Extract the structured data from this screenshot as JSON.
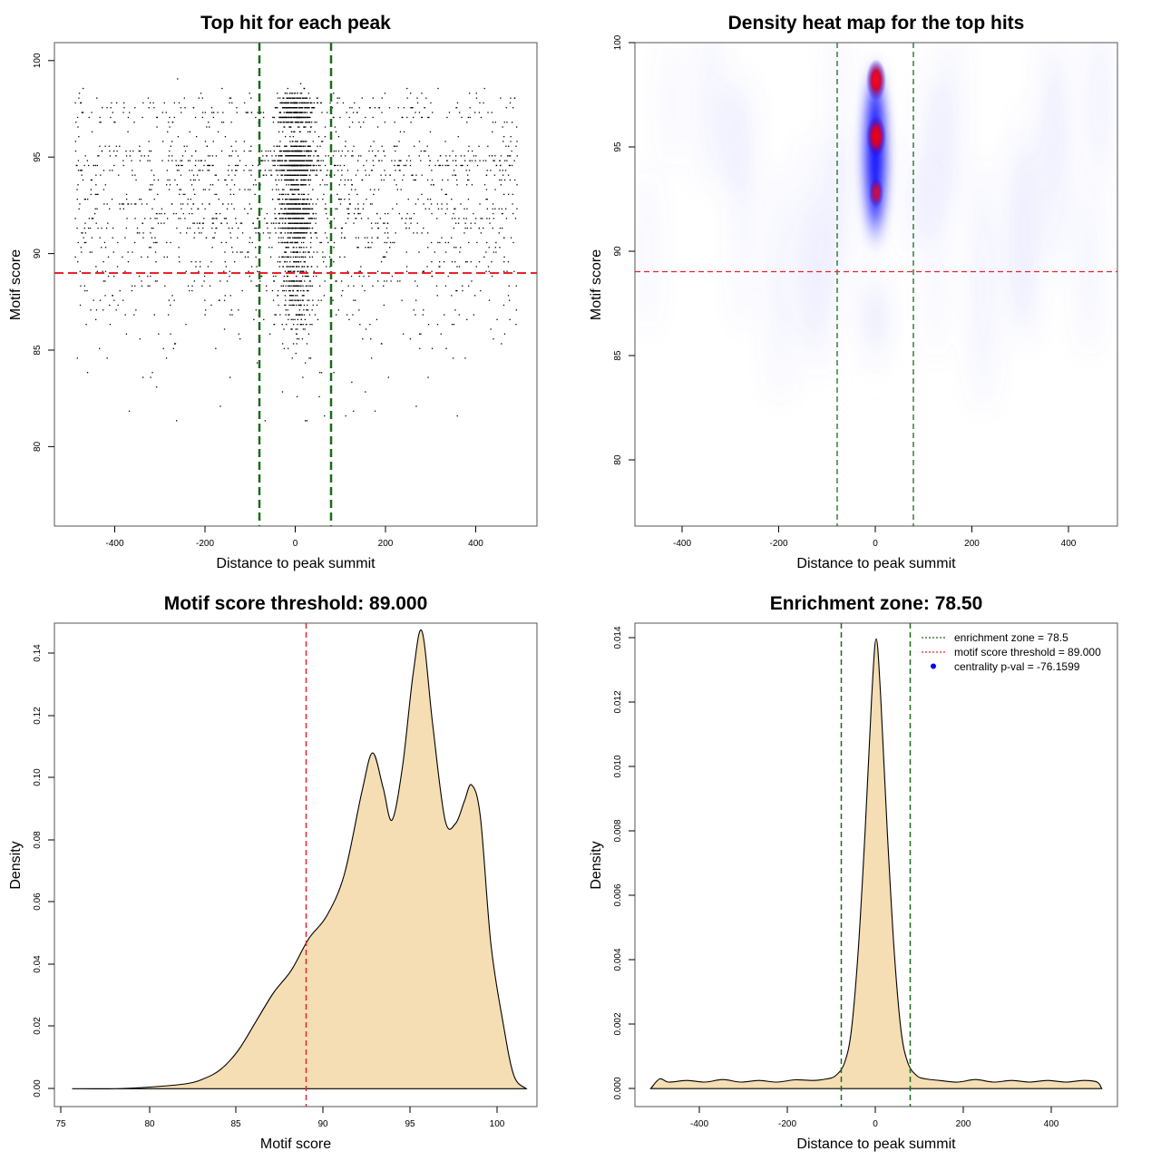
{
  "chart_data": [
    {
      "type": "scatter",
      "title": "Top hit for each peak",
      "xlabel": "Distance to peak summit",
      "ylabel": "Motif score",
      "xlim": [
        -535,
        535
      ],
      "ylim": [
        76.5,
        101.6
      ],
      "xticks": [
        "-400",
        "-200",
        "0",
        "200",
        "400"
      ],
      "yticks": [
        "80",
        "85",
        "90",
        "95",
        "100"
      ],
      "vlines": [
        -78.5,
        78.5
      ],
      "hline": 89.0,
      "vline_color": "#1a6b1a",
      "hline_color": "#e8242a",
      "point_color": "#000000"
    },
    {
      "type": "heatmap",
      "title": "Density heat map for the top hits",
      "xlabel": "Distance to peak summit",
      "ylabel": "Motif score",
      "xlim": [
        -500,
        500
      ],
      "ylim": [
        76.8,
        100.0
      ],
      "xticks": [
        "-400",
        "-200",
        "0",
        "200",
        "400"
      ],
      "yticks": [
        "80",
        "85",
        "90",
        "95",
        "100"
      ],
      "vlines": [
        -78.5,
        78.5
      ],
      "hline": 89.0,
      "hotspots": [
        {
          "x": 0,
          "y": 98.2,
          "level": "high"
        },
        {
          "x": 0,
          "y": 95.5,
          "level": "high"
        },
        {
          "x": 0,
          "y": 92.8,
          "level": "medium"
        }
      ],
      "colors": [
        "#ffffff",
        "#0000ff",
        "#ff0000"
      ]
    },
    {
      "type": "area",
      "title": "Motif score threshold: 89.000",
      "xlabel": "Motif score",
      "ylabel": "Density",
      "xlim": [
        74.6,
        101.9
      ],
      "ylim": [
        -0.0056,
        0.1456
      ],
      "xticks": [
        "75",
        "80",
        "85",
        "90",
        "95",
        "100"
      ],
      "yticks": [
        "0.00",
        "0.02",
        "0.04",
        "0.06",
        "0.08",
        "0.10",
        "0.12",
        "0.14"
      ],
      "vline": 89.0,
      "fill_color": "#f5deb3",
      "x": [
        75.6,
        78,
        80,
        82,
        83,
        84,
        85,
        86,
        87,
        88,
        89,
        90,
        91,
        92,
        92.6,
        93.2,
        93.7,
        94.3,
        94.9,
        95.4,
        96,
        96.7,
        97.3,
        97.8,
        98.2,
        98.7,
        99.3,
        100,
        100.6,
        101.3
      ],
      "y": [
        0.0,
        0.0,
        0.0005,
        0.0015,
        0.003,
        0.006,
        0.012,
        0.021,
        0.03,
        0.037,
        0.047,
        0.054,
        0.067,
        0.093,
        0.105,
        0.094,
        0.084,
        0.101,
        0.13,
        0.143,
        0.114,
        0.084,
        0.083,
        0.09,
        0.095,
        0.085,
        0.045,
        0.02,
        0.004,
        0.0
      ]
    },
    {
      "type": "area",
      "title": "Enrichment zone: 78.50",
      "xlabel": "Distance to peak summit",
      "ylabel": "Density",
      "xlim": [
        -535,
        535
      ],
      "ylim": [
        -0.00055,
        0.01428
      ],
      "xticks": [
        "-400",
        "-200",
        "0",
        "200",
        "400"
      ],
      "yticks": [
        "0.000",
        "0.002",
        "0.004",
        "0.006",
        "0.008",
        "0.010",
        "0.012",
        "0.014"
      ],
      "vlines": [
        -78.5,
        78.5
      ],
      "fill_color": "#f5deb3",
      "x": [
        -500,
        -480,
        -460,
        -420,
        -380,
        -340,
        -300,
        -260,
        -220,
        -180,
        -140,
        -110,
        -90,
        -70,
        -55,
        -40,
        -25,
        -10,
        0,
        10,
        25,
        40,
        55,
        70,
        90,
        110,
        140,
        180,
        220,
        260,
        300,
        340,
        380,
        420,
        460,
        490,
        500
      ],
      "y": [
        0.0,
        0.0003,
        0.0002,
        0.00025,
        0.0002,
        0.00028,
        0.0002,
        0.00025,
        0.0002,
        0.00027,
        0.00025,
        0.0003,
        0.0004,
        0.0008,
        0.0018,
        0.0042,
        0.0078,
        0.012,
        0.0138,
        0.012,
        0.0078,
        0.0042,
        0.0018,
        0.0008,
        0.0004,
        0.0003,
        0.00025,
        0.0002,
        0.00028,
        0.0002,
        0.00025,
        0.0002,
        0.00025,
        0.0002,
        0.00025,
        0.0002,
        0.0
      ],
      "legend": [
        {
          "label": "enrichment zone = 78.5",
          "color": "#1a6b1a",
          "style": "dotted"
        },
        {
          "label": "motif score threshold = 89.000",
          "color": "#e8242a",
          "style": "dotted"
        },
        {
          "label": "centrality p-val = -76.1599",
          "color": "#0000ff",
          "style": "point"
        }
      ],
      "legend_position": "top-right"
    }
  ]
}
